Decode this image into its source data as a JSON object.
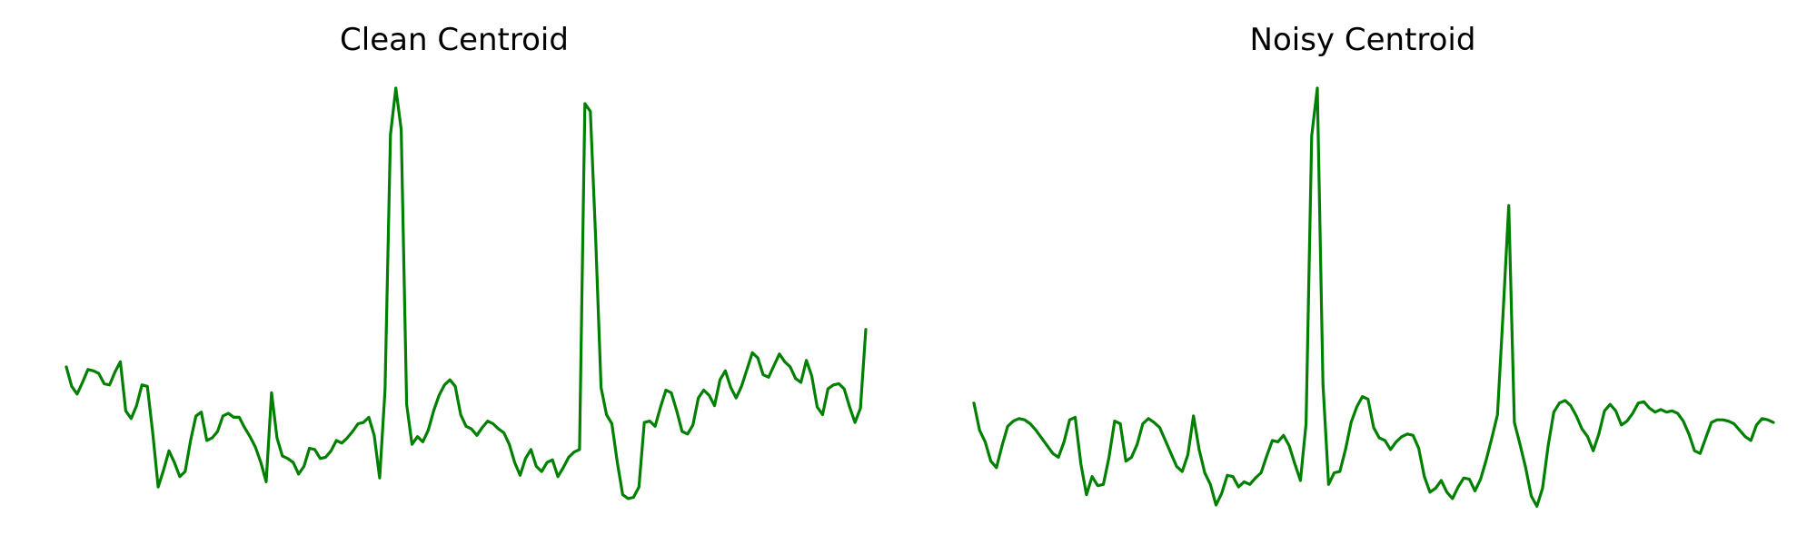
{
  "chart_data": [
    {
      "type": "line",
      "title": "Clean Centroid",
      "xlabel": "",
      "ylabel": "",
      "axes_visible": false,
      "grid": false,
      "line_color": "#008000",
      "ylim": [
        -1.2,
        3.2
      ],
      "series": [
        {
          "values": [
            0.29,
            0.14,
            0.08,
            0.17,
            0.27,
            0.26,
            0.24,
            0.16,
            0.15,
            0.25,
            0.33,
            -0.05,
            -0.11,
            -0.01,
            0.15,
            0.14,
            -0.22,
            -0.64,
            -0.51,
            -0.36,
            -0.45,
            -0.56,
            -0.52,
            -0.28,
            -0.09,
            -0.06,
            -0.28,
            -0.26,
            -0.21,
            -0.09,
            -0.07,
            -0.1,
            -0.1,
            -0.18,
            -0.25,
            -0.33,
            -0.45,
            -0.6,
            0.09,
            -0.26,
            -0.4,
            -0.42,
            -0.45,
            -0.54,
            -0.48,
            -0.34,
            -0.35,
            -0.42,
            -0.41,
            -0.36,
            -0.28,
            -0.3,
            -0.26,
            -0.21,
            -0.15,
            -0.14,
            -0.1,
            -0.24,
            -0.57,
            0.11,
            2.09,
            2.45,
            2.13,
            0.0,
            -0.31,
            -0.25,
            -0.29,
            -0.2,
            -0.05,
            0.07,
            0.15,
            0.19,
            0.14,
            -0.08,
            -0.17,
            -0.19,
            -0.24,
            -0.18,
            -0.13,
            -0.15,
            -0.19,
            -0.22,
            -0.31,
            -0.45,
            -0.55,
            -0.42,
            -0.35,
            -0.48,
            -0.52,
            -0.45,
            -0.43,
            -0.56,
            -0.49,
            -0.41,
            -0.37,
            -0.35,
            2.33,
            2.27,
            1.28,
            0.13,
            -0.08,
            -0.15,
            -0.45,
            -0.7,
            -0.73,
            -0.72,
            -0.64,
            -0.14,
            -0.13,
            -0.17,
            -0.02,
            0.11,
            0.09,
            -0.05,
            -0.21,
            -0.23,
            -0.16,
            0.05,
            0.11,
            0.07,
            -0.01,
            0.19,
            0.26,
            0.13,
            0.05,
            0.14,
            0.27,
            0.4,
            0.36,
            0.23,
            0.21,
            0.3,
            0.39,
            0.33,
            0.29,
            0.2,
            0.17,
            0.34,
            0.22,
            -0.02,
            -0.08,
            0.12,
            0.15,
            0.16,
            0.12,
            -0.02,
            -0.14,
            -0.03,
            0.58
          ]
        }
      ]
    },
    {
      "type": "line",
      "title": "Noisy Centroid",
      "xlabel": "",
      "ylabel": "",
      "axes_visible": false,
      "grid": false,
      "line_color": "#008000",
      "ylim": [
        -1.2,
        3.2
      ],
      "series": [
        {
          "values": [
            0.01,
            -0.2,
            -0.29,
            -0.44,
            -0.49,
            -0.32,
            -0.17,
            -0.13,
            -0.11,
            -0.12,
            -0.15,
            -0.2,
            -0.26,
            -0.32,
            -0.38,
            -0.41,
            -0.29,
            -0.12,
            -0.1,
            -0.46,
            -0.7,
            -0.56,
            -0.63,
            -0.62,
            -0.41,
            -0.13,
            -0.15,
            -0.44,
            -0.41,
            -0.31,
            -0.15,
            -0.11,
            -0.14,
            -0.18,
            -0.28,
            -0.38,
            -0.48,
            -0.52,
            -0.39,
            -0.09,
            -0.35,
            -0.53,
            -0.62,
            -0.78,
            -0.69,
            -0.55,
            -0.56,
            -0.64,
            -0.6,
            -0.62,
            -0.57,
            -0.53,
            -0.4,
            -0.28,
            -0.29,
            -0.24,
            -0.32,
            -0.46,
            -0.59,
            -0.15,
            2.08,
            2.45,
            0.16,
            -0.62,
            -0.53,
            -0.52,
            -0.35,
            -0.14,
            -0.02,
            0.06,
            0.04,
            -0.18,
            -0.26,
            -0.28,
            -0.35,
            -0.29,
            -0.25,
            -0.23,
            -0.24,
            -0.34,
            -0.56,
            -0.68,
            -0.65,
            -0.59,
            -0.68,
            -0.73,
            -0.64,
            -0.57,
            -0.58,
            -0.67,
            -0.58,
            -0.43,
            -0.26,
            -0.08,
            0.71,
            1.54,
            -0.14,
            -0.31,
            -0.49,
            -0.71,
            -0.79,
            -0.65,
            -0.32,
            -0.06,
            0.01,
            0.03,
            -0.01,
            -0.09,
            -0.19,
            -0.25,
            -0.36,
            -0.23,
            -0.05,
            0.0,
            -0.05,
            -0.16,
            -0.13,
            -0.07,
            0.01,
            0.02,
            -0.03,
            -0.06,
            -0.04,
            -0.06,
            -0.05,
            -0.07,
            -0.13,
            -0.23,
            -0.36,
            -0.38,
            -0.26,
            -0.14,
            -0.12,
            -0.12,
            -0.13,
            -0.15,
            -0.2,
            -0.25,
            -0.28,
            -0.16,
            -0.11,
            -0.12,
            -0.14
          ]
        }
      ]
    }
  ]
}
